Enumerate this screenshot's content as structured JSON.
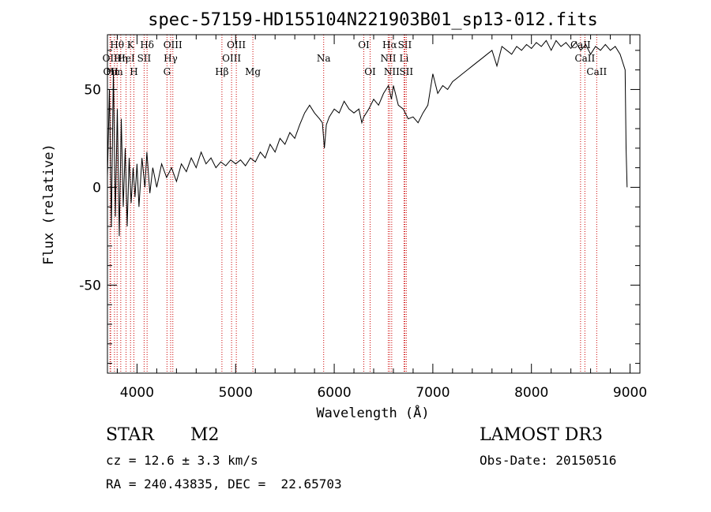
{
  "chart_data": {
    "type": "line",
    "title": "spec-57159-HD155104N221903B01_sp13-012.fits",
    "xlabel": "Wavelength (Å)",
    "ylabel": "Flux (relative)",
    "xlim": [
      3700,
      9100
    ],
    "ylim": [
      -95,
      78
    ],
    "x_ticks": [
      4000,
      5000,
      6000,
      7000,
      8000,
      9000
    ],
    "y_ticks": [
      -50,
      0,
      50
    ],
    "grid": false,
    "series": [
      {
        "name": "flux",
        "points": [
          [
            3700,
            5
          ],
          [
            3720,
            50
          ],
          [
            3740,
            -20
          ],
          [
            3760,
            60
          ],
          [
            3780,
            -15
          ],
          [
            3800,
            40
          ],
          [
            3820,
            -25
          ],
          [
            3840,
            35
          ],
          [
            3860,
            -10
          ],
          [
            3880,
            20
          ],
          [
            3900,
            -20
          ],
          [
            3920,
            15
          ],
          [
            3940,
            -8
          ],
          [
            3960,
            10
          ],
          [
            3980,
            -5
          ],
          [
            4000,
            12
          ],
          [
            4020,
            -10
          ],
          [
            4050,
            15
          ],
          [
            4080,
            0
          ],
          [
            4100,
            18
          ],
          [
            4130,
            -3
          ],
          [
            4160,
            10
          ],
          [
            4200,
            0
          ],
          [
            4250,
            12
          ],
          [
            4300,
            5
          ],
          [
            4350,
            10
          ],
          [
            4400,
            3
          ],
          [
            4450,
            12
          ],
          [
            4500,
            8
          ],
          [
            4550,
            15
          ],
          [
            4600,
            10
          ],
          [
            4650,
            18
          ],
          [
            4700,
            12
          ],
          [
            4750,
            15
          ],
          [
            4800,
            10
          ],
          [
            4850,
            13
          ],
          [
            4900,
            11
          ],
          [
            4950,
            14
          ],
          [
            5000,
            12
          ],
          [
            5050,
            14
          ],
          [
            5100,
            11
          ],
          [
            5150,
            15
          ],
          [
            5200,
            13
          ],
          [
            5250,
            18
          ],
          [
            5300,
            15
          ],
          [
            5350,
            22
          ],
          [
            5400,
            18
          ],
          [
            5450,
            25
          ],
          [
            5500,
            22
          ],
          [
            5550,
            28
          ],
          [
            5600,
            25
          ],
          [
            5650,
            32
          ],
          [
            5700,
            38
          ],
          [
            5750,
            42
          ],
          [
            5800,
            38
          ],
          [
            5850,
            35
          ],
          [
            5880,
            33
          ],
          [
            5900,
            20
          ],
          [
            5920,
            32
          ],
          [
            5950,
            36
          ],
          [
            6000,
            40
          ],
          [
            6050,
            38
          ],
          [
            6100,
            44
          ],
          [
            6150,
            40
          ],
          [
            6200,
            38
          ],
          [
            6250,
            40
          ],
          [
            6280,
            33
          ],
          [
            6300,
            36
          ],
          [
            6350,
            40
          ],
          [
            6400,
            45
          ],
          [
            6450,
            42
          ],
          [
            6500,
            48
          ],
          [
            6550,
            52
          ],
          [
            6580,
            45
          ],
          [
            6600,
            52
          ],
          [
            6620,
            48
          ],
          [
            6650,
            42
          ],
          [
            6700,
            40
          ],
          [
            6750,
            35
          ],
          [
            6800,
            36
          ],
          [
            6850,
            33
          ],
          [
            6900,
            38
          ],
          [
            6950,
            42
          ],
          [
            7000,
            58
          ],
          [
            7050,
            48
          ],
          [
            7100,
            52
          ],
          [
            7150,
            50
          ],
          [
            7200,
            54
          ],
          [
            7250,
            56
          ],
          [
            7300,
            58
          ],
          [
            7350,
            60
          ],
          [
            7400,
            62
          ],
          [
            7450,
            64
          ],
          [
            7500,
            66
          ],
          [
            7550,
            68
          ],
          [
            7600,
            70
          ],
          [
            7650,
            62
          ],
          [
            7700,
            72
          ],
          [
            7750,
            70
          ],
          [
            7800,
            68
          ],
          [
            7850,
            72
          ],
          [
            7900,
            70
          ],
          [
            7950,
            73
          ],
          [
            8000,
            71
          ],
          [
            8050,
            74
          ],
          [
            8100,
            72
          ],
          [
            8150,
            75
          ],
          [
            8200,
            70
          ],
          [
            8250,
            75
          ],
          [
            8300,
            72
          ],
          [
            8350,
            74
          ],
          [
            8400,
            71
          ],
          [
            8450,
            74
          ],
          [
            8500,
            70
          ],
          [
            8550,
            73
          ],
          [
            8600,
            68
          ],
          [
            8650,
            72
          ],
          [
            8700,
            70
          ],
          [
            8750,
            73
          ],
          [
            8800,
            70
          ],
          [
            8850,
            72
          ],
          [
            8900,
            68
          ],
          [
            8950,
            60
          ],
          [
            8960,
            20
          ],
          [
            8970,
            0
          ]
        ]
      }
    ],
    "line_markers": [
      {
        "wavelength": 3726,
        "labels": [
          "OII"
        ],
        "row": 1
      },
      {
        "wavelength": 3733,
        "labels": [
          "OII"
        ],
        "row": 2
      },
      {
        "wavelength": 3771,
        "labels": [
          "Hm"
        ],
        "row": 2
      },
      {
        "wavelength": 3798,
        "labels": [
          "Hθ"
        ],
        "row": 0
      },
      {
        "wavelength": 3835,
        "labels": [
          "Hη"
        ],
        "row": 1
      },
      {
        "wavelength": 3889,
        "labels": [
          "HeI"
        ],
        "row": 1
      },
      {
        "wavelength": 3934,
        "labels": [
          "K"
        ],
        "row": 0
      },
      {
        "wavelength": 3968,
        "labels": [
          "H"
        ],
        "row": 2
      },
      {
        "wavelength": 4072,
        "labels": [
          "SII"
        ],
        "row": 1
      },
      {
        "wavelength": 4102,
        "labels": [
          "Hδ"
        ],
        "row": 0
      },
      {
        "wavelength": 4304,
        "labels": [
          "G"
        ],
        "row": 2
      },
      {
        "wavelength": 4341,
        "labels": [
          "Hγ"
        ],
        "row": 1
      },
      {
        "wavelength": 4363,
        "labels": [
          "OIII"
        ],
        "row": 0
      },
      {
        "wavelength": 4861,
        "labels": [
          "Hβ"
        ],
        "row": 2
      },
      {
        "wavelength": 4959,
        "labels": [
          "OIII"
        ],
        "row": 1
      },
      {
        "wavelength": 5007,
        "labels": [
          "OIII"
        ],
        "row": 0
      },
      {
        "wavelength": 5175,
        "labels": [
          "Mg"
        ],
        "row": 2
      },
      {
        "wavelength": 5893,
        "labels": [
          "Na"
        ],
        "row": 1
      },
      {
        "wavelength": 6300,
        "labels": [
          "OI"
        ],
        "row": 0
      },
      {
        "wavelength": 6364,
        "labels": [
          "OI"
        ],
        "row": 2
      },
      {
        "wavelength": 6548,
        "labels": [
          "NII"
        ],
        "row": 1
      },
      {
        "wavelength": 6563,
        "labels": [
          "Hα"
        ],
        "row": 0
      },
      {
        "wavelength": 6583,
        "labels": [
          "NII"
        ],
        "row": 2
      },
      {
        "wavelength": 6708,
        "labels": [
          "Li"
        ],
        "row": 1
      },
      {
        "wavelength": 6716,
        "labels": [
          "SII"
        ],
        "row": 0
      },
      {
        "wavelength": 6731,
        "labels": [
          "SII"
        ],
        "row": 2
      },
      {
        "wavelength": 8498,
        "labels": [
          "CaII"
        ],
        "row": 0
      },
      {
        "wavelength": 8542,
        "labels": [
          "CaII"
        ],
        "row": 1
      },
      {
        "wavelength": 8662,
        "labels": [
          "CaII"
        ],
        "row": 2
      }
    ]
  },
  "info": {
    "object_class": "STAR",
    "subclass": "M2",
    "survey": "LAMOST DR3",
    "redshift": "cz = 12.6 ± 3.3 km/s",
    "obs_date": "Obs-Date: 20150516",
    "coords": "RA = 240.43835, DEC =  22.65703"
  },
  "colors": {
    "axis": "#000000",
    "spectrum": "#000000",
    "marker": "#cc0000"
  }
}
